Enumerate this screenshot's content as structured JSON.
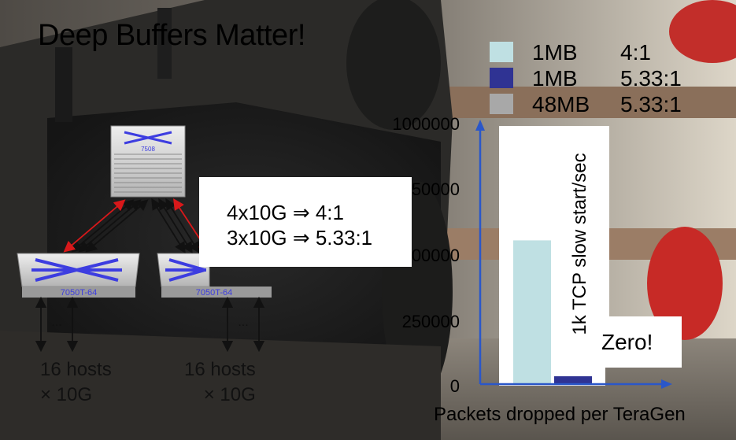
{
  "title": "Deep Buffers Matter!",
  "legend": [
    {
      "size": "1MB",
      "ratio": "4:1",
      "color": "#bfe0e3"
    },
    {
      "size": "1MB",
      "ratio": "5.33:1",
      "color": "#2f3393"
    },
    {
      "size": "48MB",
      "ratio": "5.33:1",
      "color": "#a8a8a8"
    }
  ],
  "callout": {
    "line1": "4x10G ⇒ 4:1",
    "line2": "3x10G ⇒ 5.33:1"
  },
  "switches": {
    "spine": {
      "label": "7508",
      "icon": "switch-icon"
    },
    "leaf_left": {
      "label": "7050T-64",
      "icon": "switch-icon"
    },
    "leaf_right": {
      "label": "7050T-64",
      "icon": "switch-icon"
    }
  },
  "hosts": {
    "left": {
      "dots": "...",
      "line1": "16 hosts",
      "line2": "× 10G"
    },
    "right": {
      "dots": "...",
      "line1": "16 hosts",
      "line2": "× 10G"
    }
  },
  "annotations": {
    "note": "1k TCP slow start/sec",
    "zero": "Zero!"
  },
  "colors": {
    "axis": "#2a57c9",
    "uplink_red": "#d8181a",
    "axis_frame": "#ffffff"
  },
  "chart_data": {
    "type": "bar",
    "title": "",
    "xlabel": "Packets dropped per TeraGen",
    "ylabel": "",
    "ylim": [
      0,
      1000000
    ],
    "yticks": [
      "0",
      "250000",
      "500000",
      "750000",
      "1000000"
    ],
    "series": [
      {
        "name": "1MB 4:1",
        "values": [
          550000
        ],
        "color": "#bfe0e3"
      },
      {
        "name": "1MB 5.33:1",
        "values": [
          30000
        ],
        "color": "#2f3393"
      },
      {
        "name": "48MB 5.33:1",
        "values": [
          0
        ],
        "color": "#a8a8a8"
      }
    ]
  }
}
